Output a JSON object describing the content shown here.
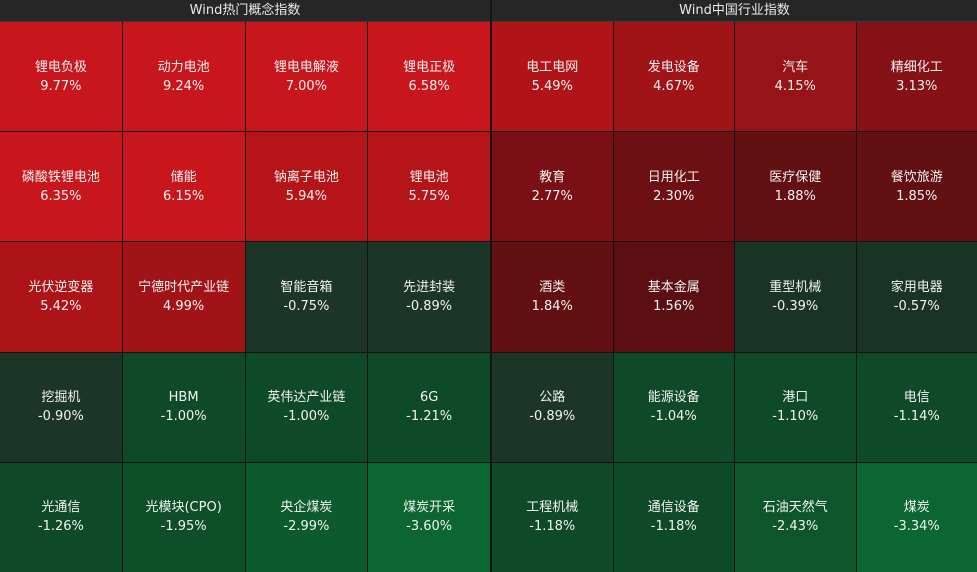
{
  "left_panel": {
    "title": "Wind热门概念指数",
    "tiles": [
      {
        "name": "锂电负极",
        "value": "9.77%",
        "color": "#c8161d"
      },
      {
        "name": "动力电池",
        "value": "9.24%",
        "color": "#c8161d"
      },
      {
        "name": "锂电电解液",
        "value": "7.00%",
        "color": "#c8161d"
      },
      {
        "name": "锂电正极",
        "value": "6.58%",
        "color": "#c8161d"
      },
      {
        "name": "磷酸铁锂电池",
        "value": "6.35%",
        "color": "#c8161d"
      },
      {
        "name": "储能",
        "value": "6.15%",
        "color": "#c8161d"
      },
      {
        "name": "钠离子电池",
        "value": "5.94%",
        "color": "#b51519"
      },
      {
        "name": "锂电池",
        "value": "5.75%",
        "color": "#b51519"
      },
      {
        "name": "光伏逆变器",
        "value": "5.42%",
        "color": "#ad1418"
      },
      {
        "name": "宁德时代产业链",
        "value": "4.99%",
        "color": "#a01317"
      },
      {
        "name": "智能音箱",
        "value": "-0.75%",
        "color": "#1b3527"
      },
      {
        "name": "先进封装",
        "value": "-0.89%",
        "color": "#1b3527"
      },
      {
        "name": "挖掘机",
        "value": "-0.90%",
        "color": "#1b3527"
      },
      {
        "name": "HBM",
        "value": "-1.00%",
        "color": "#0f4a28"
      },
      {
        "name": "英伟达产业链",
        "value": "-1.00%",
        "color": "#0f4a28"
      },
      {
        "name": "6G",
        "value": "-1.21%",
        "color": "#0f4a28"
      },
      {
        "name": "光通信",
        "value": "-1.26%",
        "color": "#0f4a28"
      },
      {
        "name": "光模块(CPO)",
        "value": "-1.95%",
        "color": "#0e4f2a"
      },
      {
        "name": "央企煤炭",
        "value": "-2.99%",
        "color": "#0c5a2d"
      },
      {
        "name": "煤炭开采",
        "value": "-3.60%",
        "color": "#0b6631"
      }
    ]
  },
  "right_panel": {
    "title": "Wind中国行业指数",
    "tiles": [
      {
        "name": "电工电网",
        "value": "5.49%",
        "color": "#b01419"
      },
      {
        "name": "发电设备",
        "value": "4.67%",
        "color": "#a01317"
      },
      {
        "name": "汽车",
        "value": "4.15%",
        "color": "#961318"
      },
      {
        "name": "精细化工",
        "value": "3.13%",
        "color": "#831116"
      },
      {
        "name": "教育",
        "value": "2.77%",
        "color": "#7a1015"
      },
      {
        "name": "日用化工",
        "value": "2.30%",
        "color": "#6d1014"
      },
      {
        "name": "医疗保健",
        "value": "1.88%",
        "color": "#631013"
      },
      {
        "name": "餐饮旅游",
        "value": "1.85%",
        "color": "#631013"
      },
      {
        "name": "酒类",
        "value": "1.84%",
        "color": "#631013"
      },
      {
        "name": "基本金属",
        "value": "1.56%",
        "color": "#5c0f12"
      },
      {
        "name": "重型机械",
        "value": "-0.39%",
        "color": "#1a3424"
      },
      {
        "name": "家用电器",
        "value": "-0.57%",
        "color": "#1a3424"
      },
      {
        "name": "公路",
        "value": "-0.89%",
        "color": "#1b3527"
      },
      {
        "name": "能源设备",
        "value": "-1.04%",
        "color": "#0f4a28"
      },
      {
        "name": "港口",
        "value": "-1.10%",
        "color": "#0f4a28"
      },
      {
        "name": "电信",
        "value": "-1.14%",
        "color": "#0f4a28"
      },
      {
        "name": "工程机械",
        "value": "-1.18%",
        "color": "#0f4a28"
      },
      {
        "name": "通信设备",
        "value": "-1.18%",
        "color": "#0f4a28"
      },
      {
        "name": "石油天然气",
        "value": "-2.43%",
        "color": "#0d562b"
      },
      {
        "name": "煤炭",
        "value": "-3.34%",
        "color": "#0b6631"
      }
    ]
  }
}
